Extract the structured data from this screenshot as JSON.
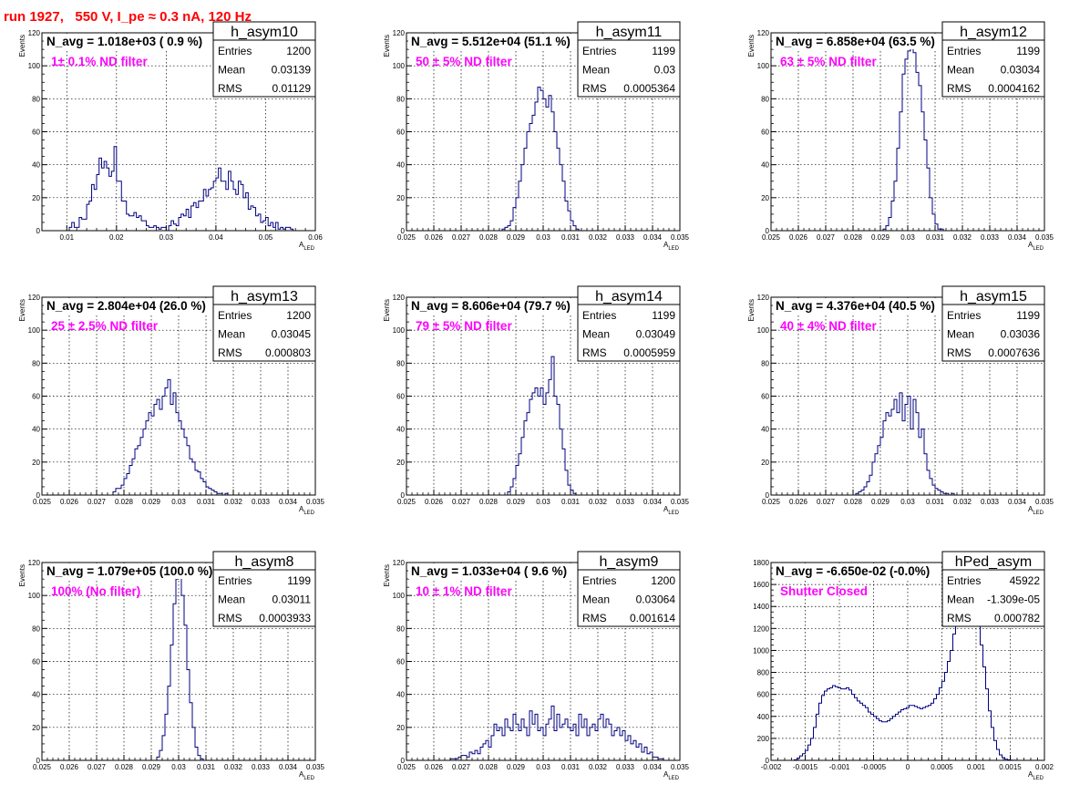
{
  "page": {
    "title": "run 1927,   550 V, I_pe ≈ 0.3 nA, 120 Hz"
  },
  "colors": {
    "histogram_line": "#000080",
    "annotation": "#ff00ff",
    "title": "#ff0000",
    "grid": "#000000",
    "frame": "#000000"
  },
  "chart_data": [
    {
      "type": "histogram",
      "name": "h_asym10",
      "stats": {
        "Entries": "1200",
        "Mean": "0.03139",
        "RMS": "0.01129"
      },
      "navg": "N_avg = 1.018e+03 ( 0.9 %)",
      "annotation": "1± 0.1% ND filter",
      "xlabel": "A_LED",
      "ylabel": "Events",
      "xlim": [
        0.005,
        0.06
      ],
      "ylim": [
        0,
        120
      ],
      "xticks": [
        0.01,
        0.02,
        0.03,
        0.04,
        0.05,
        0.06
      ],
      "xtick_labels": [
        "0.01",
        "0.02",
        "0.03",
        "0.04",
        "0.05",
        "0.06"
      ],
      "yticks": [
        0,
        20,
        40,
        60,
        80,
        100,
        120
      ],
      "grid": true,
      "bin_lo": 0.005,
      "bin_hi": 0.06,
      "values": [
        0,
        0,
        0,
        0,
        0,
        0,
        0,
        0,
        0,
        0,
        0,
        2,
        5,
        2,
        2,
        8,
        7,
        7,
        16,
        18,
        28,
        25,
        34,
        44,
        38,
        42,
        38,
        33,
        36,
        51,
        30,
        30,
        18,
        18,
        10,
        9,
        9,
        11,
        8,
        9,
        6,
        6,
        3,
        2,
        2,
        3,
        2,
        1,
        2,
        2,
        0,
        3,
        6,
        4,
        3,
        8,
        10,
        9,
        13,
        8,
        15,
        17,
        14,
        18,
        18,
        25,
        21,
        25,
        26,
        30,
        32,
        38,
        30,
        30,
        25,
        36,
        30,
        25,
        22,
        30,
        28,
        20,
        23,
        13,
        15,
        14,
        9,
        10,
        5,
        6,
        8,
        3,
        5,
        2,
        5,
        1,
        2,
        1,
        2,
        2,
        1,
        0,
        0,
        0,
        0,
        0,
        0,
        0,
        0,
        0
      ]
    },
    {
      "type": "histogram",
      "name": "h_asym11",
      "stats": {
        "Entries": "1199",
        "Mean": "0.03",
        "RMS": "0.0005364"
      },
      "navg": "N_avg = 5.512e+04 (51.1 %)",
      "annotation": "50 ± 5% ND filter",
      "xlabel": "A_LED",
      "ylabel": "Events",
      "xlim": [
        0.025,
        0.035
      ],
      "ylim": [
        0,
        120
      ],
      "xticks": [
        0.025,
        0.026,
        0.027,
        0.028,
        0.029,
        0.03,
        0.031,
        0.032,
        0.033,
        0.034,
        0.035
      ],
      "xtick_labels": [
        "0.025",
        "0.026",
        "0.027",
        "0.028",
        "0.029",
        "0.03",
        "0.031",
        "0.032",
        "0.033",
        "0.034",
        "0.035"
      ],
      "yticks": [
        0,
        20,
        40,
        60,
        80,
        100,
        120
      ],
      "grid": true,
      "bin_lo": 0.0275,
      "bin_hi": 0.0325,
      "values": [
        0,
        0,
        0,
        0,
        0,
        0,
        0,
        0,
        0,
        0,
        1,
        2,
        3,
        6,
        14,
        20,
        30,
        40,
        50,
        60,
        65,
        70,
        78,
        87,
        85,
        80,
        75,
        82,
        72,
        60,
        50,
        40,
        30,
        18,
        12,
        6,
        3,
        1,
        0,
        0,
        0,
        0,
        0,
        0,
        0,
        0,
        0,
        0,
        0,
        0
      ]
    },
    {
      "type": "histogram",
      "name": "h_asym12",
      "stats": {
        "Entries": "1199",
        "Mean": "0.03034",
        "RMS": "0.0004162"
      },
      "navg": "N_avg = 6.858e+04 (63.5 %)",
      "annotation": "63 ± 5% ND filter",
      "xlabel": "A_LED",
      "ylabel": "Events",
      "xlim": [
        0.025,
        0.035
      ],
      "ylim": [
        0,
        120
      ],
      "xticks": [
        0.025,
        0.026,
        0.027,
        0.028,
        0.029,
        0.03,
        0.031,
        0.032,
        0.033,
        0.034,
        0.035
      ],
      "xtick_labels": [
        "0.025",
        "0.026",
        "0.027",
        "0.028",
        "0.029",
        "0.03",
        "0.031",
        "0.032",
        "0.033",
        "0.034",
        "0.035"
      ],
      "yticks": [
        0,
        20,
        40,
        60,
        80,
        100,
        120
      ],
      "grid": true,
      "bin_lo": 0.0275,
      "bin_hi": 0.0325,
      "values": [
        0,
        0,
        0,
        0,
        0,
        0,
        0,
        0,
        0,
        0,
        0,
        0,
        0,
        0,
        0,
        0,
        1,
        3,
        8,
        18,
        30,
        50,
        72,
        95,
        104,
        109,
        112,
        108,
        96,
        88,
        72,
        55,
        38,
        20,
        10,
        4,
        1,
        1,
        0,
        0,
        0,
        0,
        0,
        0,
        0,
        0,
        0,
        0,
        0,
        0
      ]
    },
    {
      "type": "histogram",
      "name": "h_asym13",
      "stats": {
        "Entries": "1200",
        "Mean": "0.03045",
        "RMS": "0.000803"
      },
      "navg": "N_avg = 2.804e+04 (26.0 %)",
      "annotation": "25 ± 2.5% ND filter",
      "xlabel": "A_LED",
      "ylabel": "Events",
      "xlim": [
        0.025,
        0.035
      ],
      "ylim": [
        0,
        120
      ],
      "xticks": [
        0.025,
        0.026,
        0.027,
        0.028,
        0.029,
        0.03,
        0.031,
        0.032,
        0.033,
        0.034,
        0.035
      ],
      "xtick_labels": [
        "0.025",
        "0.026",
        "0.027",
        "0.028",
        "0.029",
        "0.03",
        "0.031",
        "0.032",
        "0.033",
        "0.034",
        "0.035"
      ],
      "yticks": [
        0,
        20,
        40,
        60,
        80,
        100,
        120
      ],
      "grid": true,
      "bin_lo": 0.0275,
      "bin_hi": 0.0335,
      "values": [
        0,
        2,
        4,
        4,
        6,
        10,
        13,
        18,
        22,
        28,
        30,
        35,
        40,
        45,
        50,
        48,
        55,
        58,
        52,
        60,
        65,
        70,
        55,
        62,
        50,
        45,
        40,
        35,
        30,
        22,
        20,
        15,
        14,
        10,
        8,
        5,
        4,
        3,
        2,
        1,
        1,
        0,
        1,
        0,
        0,
        0,
        0,
        0,
        0,
        0,
        0,
        0,
        0,
        0,
        0,
        0,
        0,
        0,
        0,
        0
      ]
    },
    {
      "type": "histogram",
      "name": "h_asym14",
      "stats": {
        "Entries": "1199",
        "Mean": "0.03049",
        "RMS": "0.0005959"
      },
      "navg": "N_avg = 8.606e+04 (79.7 %)",
      "annotation": "79 ± 5% ND filter",
      "xlabel": "A_LED",
      "ylabel": "Events",
      "xlim": [
        0.025,
        0.035
      ],
      "ylim": [
        0,
        120
      ],
      "xticks": [
        0.025,
        0.026,
        0.027,
        0.028,
        0.029,
        0.03,
        0.031,
        0.032,
        0.033,
        0.034,
        0.035
      ],
      "xtick_labels": [
        "0.025",
        "0.026",
        "0.027",
        "0.028",
        "0.029",
        "0.03",
        "0.031",
        "0.032",
        "0.033",
        "0.034",
        "0.035"
      ],
      "yticks": [
        0,
        20,
        40,
        60,
        80,
        100,
        120
      ],
      "grid": true,
      "bin_lo": 0.0275,
      "bin_hi": 0.0325,
      "values": [
        0,
        0,
        0,
        0,
        0,
        0,
        0,
        0,
        0,
        0,
        0,
        0,
        2,
        5,
        10,
        18,
        25,
        35,
        45,
        50,
        58,
        62,
        65,
        60,
        65,
        55,
        62,
        70,
        84,
        60,
        55,
        40,
        28,
        15,
        6,
        3,
        1,
        0,
        0,
        0,
        0,
        0,
        0,
        0,
        0,
        0,
        0,
        0,
        0,
        0
      ]
    },
    {
      "type": "histogram",
      "name": "h_asym15",
      "stats": {
        "Entries": "1199",
        "Mean": "0.03036",
        "RMS": "0.0007636"
      },
      "navg": "N_avg = 4.376e+04 (40.5 %)",
      "annotation": "40 ± 4% ND filter",
      "xlabel": "A_LED",
      "ylabel": "Events",
      "xlim": [
        0.025,
        0.035
      ],
      "ylim": [
        0,
        120
      ],
      "xticks": [
        0.025,
        0.026,
        0.027,
        0.028,
        0.029,
        0.03,
        0.031,
        0.032,
        0.033,
        0.034,
        0.035
      ],
      "xtick_labels": [
        "0.025",
        "0.026",
        "0.027",
        "0.028",
        "0.029",
        "0.03",
        "0.031",
        "0.032",
        "0.033",
        "0.034",
        "0.035"
      ],
      "yticks": [
        0,
        20,
        40,
        60,
        80,
        100,
        120
      ],
      "grid": true,
      "bin_lo": 0.0275,
      "bin_hi": 0.0335,
      "values": [
        0,
        0,
        0,
        0,
        0,
        0,
        1,
        2,
        3,
        5,
        8,
        12,
        20,
        25,
        30,
        35,
        45,
        50,
        48,
        52,
        58,
        50,
        62,
        45,
        55,
        60,
        40,
        58,
        50,
        35,
        40,
        25,
        15,
        10,
        6,
        4,
        3,
        2,
        1,
        1,
        0,
        1,
        0,
        0,
        0,
        0,
        0,
        0,
        0,
        0,
        0,
        0,
        0,
        0,
        0,
        0,
        0,
        0,
        0,
        0
      ]
    },
    {
      "type": "histogram",
      "name": "h_asym8",
      "stats": {
        "Entries": "1199",
        "Mean": "0.03011",
        "RMS": "0.0003933"
      },
      "navg": "N_avg = 1.079e+05 (100.0 %)",
      "annotation": "100% (No filter)",
      "xlabel": "A_LED",
      "ylabel": "Events",
      "xlim": [
        0.025,
        0.035
      ],
      "ylim": [
        0,
        120
      ],
      "xticks": [
        0.025,
        0.026,
        0.027,
        0.028,
        0.029,
        0.03,
        0.031,
        0.032,
        0.033,
        0.034,
        0.035
      ],
      "xtick_labels": [
        "0.025",
        "0.026",
        "0.027",
        "0.028",
        "0.029",
        "0.03",
        "0.031",
        "0.032",
        "0.033",
        "0.034",
        "0.035"
      ],
      "yticks": [
        0,
        20,
        40,
        60,
        80,
        100,
        120
      ],
      "grid": true,
      "bin_lo": 0.0275,
      "bin_hi": 0.0325,
      "values": [
        0,
        0,
        0,
        0,
        0,
        0,
        0,
        0,
        0,
        0,
        0,
        0,
        0,
        0,
        0,
        0,
        0,
        2,
        6,
        15,
        28,
        45,
        70,
        95,
        110,
        118,
        100,
        82,
        55,
        35,
        20,
        8,
        3,
        1,
        0,
        0,
        0,
        0,
        0,
        0,
        0,
        0,
        0,
        0,
        0,
        0,
        0,
        0,
        0,
        0
      ]
    },
    {
      "type": "histogram",
      "name": "h_asym9",
      "stats": {
        "Entries": "1200",
        "Mean": "0.03064",
        "RMS": "0.001614"
      },
      "navg": "N_avg = 1.033e+04 ( 9.6 %)",
      "annotation": "10 ± 1% ND filter",
      "xlabel": "A_LED",
      "ylabel": "Events",
      "xlim": [
        0.025,
        0.035
      ],
      "ylim": [
        0,
        120
      ],
      "xticks": [
        0.025,
        0.026,
        0.027,
        0.028,
        0.029,
        0.03,
        0.031,
        0.032,
        0.033,
        0.034,
        0.035
      ],
      "xtick_labels": [
        "0.025",
        "0.026",
        "0.027",
        "0.028",
        "0.029",
        "0.03",
        "0.031",
        "0.032",
        "0.033",
        "0.034",
        "0.035"
      ],
      "yticks": [
        0,
        20,
        40,
        60,
        80,
        100,
        120
      ],
      "grid": true,
      "bin_lo": 0.0255,
      "bin_hi": 0.0345,
      "values": [
        0,
        0,
        0,
        0,
        0,
        0,
        0,
        0,
        0,
        0,
        0,
        1,
        1,
        1,
        2,
        3,
        3,
        2,
        5,
        4,
        6,
        4,
        8,
        10,
        12,
        8,
        15,
        22,
        18,
        20,
        15,
        25,
        20,
        18,
        28,
        22,
        18,
        25,
        20,
        15,
        30,
        22,
        28,
        18,
        20,
        15,
        22,
        25,
        33,
        18,
        28,
        20,
        22,
        25,
        20,
        18,
        22,
        15,
        28,
        20,
        25,
        15,
        20,
        22,
        18,
        25,
        28,
        20,
        25,
        22,
        15,
        18,
        20,
        15,
        18,
        12,
        15,
        10,
        12,
        8,
        10,
        5,
        8,
        4,
        5,
        2,
        2,
        1,
        1,
        0
      ]
    },
    {
      "type": "histogram",
      "name": "hPed_asym",
      "stats": {
        "Entries": "45922",
        "Mean": "-1.309e-05",
        "RMS": "0.000782"
      },
      "navg": "N_avg = -6.650e-02 (-0.0%)",
      "annotation": "Shutter Closed",
      "xlabel": "A_LED",
      "ylabel": "",
      "xlim": [
        -0.002,
        0.002
      ],
      "ylim": [
        0,
        1800
      ],
      "xticks": [
        -0.002,
        -0.0015,
        -0.001,
        -0.0005,
        0,
        0.0005,
        0.001,
        0.0015,
        0.002
      ],
      "xtick_labels": [
        "-0.002",
        "-0.0015",
        "-0.001",
        "-0.0005",
        "0",
        "0.0005",
        "0.001",
        "0.0015",
        "0.002"
      ],
      "yticks": [
        0,
        200,
        400,
        600,
        800,
        1000,
        1200,
        1400,
        1600,
        1800
      ],
      "grid": true,
      "bin_lo": -0.0019,
      "bin_hi": 0.0017,
      "values": [
        0,
        0,
        0,
        0,
        0,
        0,
        5,
        20,
        40,
        60,
        90,
        140,
        200,
        300,
        420,
        520,
        590,
        630,
        650,
        660,
        680,
        670,
        660,
        650,
        650,
        660,
        640,
        600,
        570,
        540,
        520,
        500,
        480,
        440,
        420,
        400,
        380,
        360,
        350,
        350,
        360,
        380,
        400,
        420,
        440,
        460,
        470,
        480,
        500,
        500,
        490,
        480,
        470,
        480,
        490,
        500,
        520,
        560,
        600,
        660,
        720,
        800,
        900,
        1000,
        1150,
        1300,
        1450,
        1600,
        1700,
        1760,
        1720,
        1600,
        1450,
        1250,
        1050,
        850,
        650,
        450,
        300,
        180,
        100,
        50,
        25,
        10,
        5,
        2,
        1,
        0,
        0,
        0
      ]
    }
  ]
}
